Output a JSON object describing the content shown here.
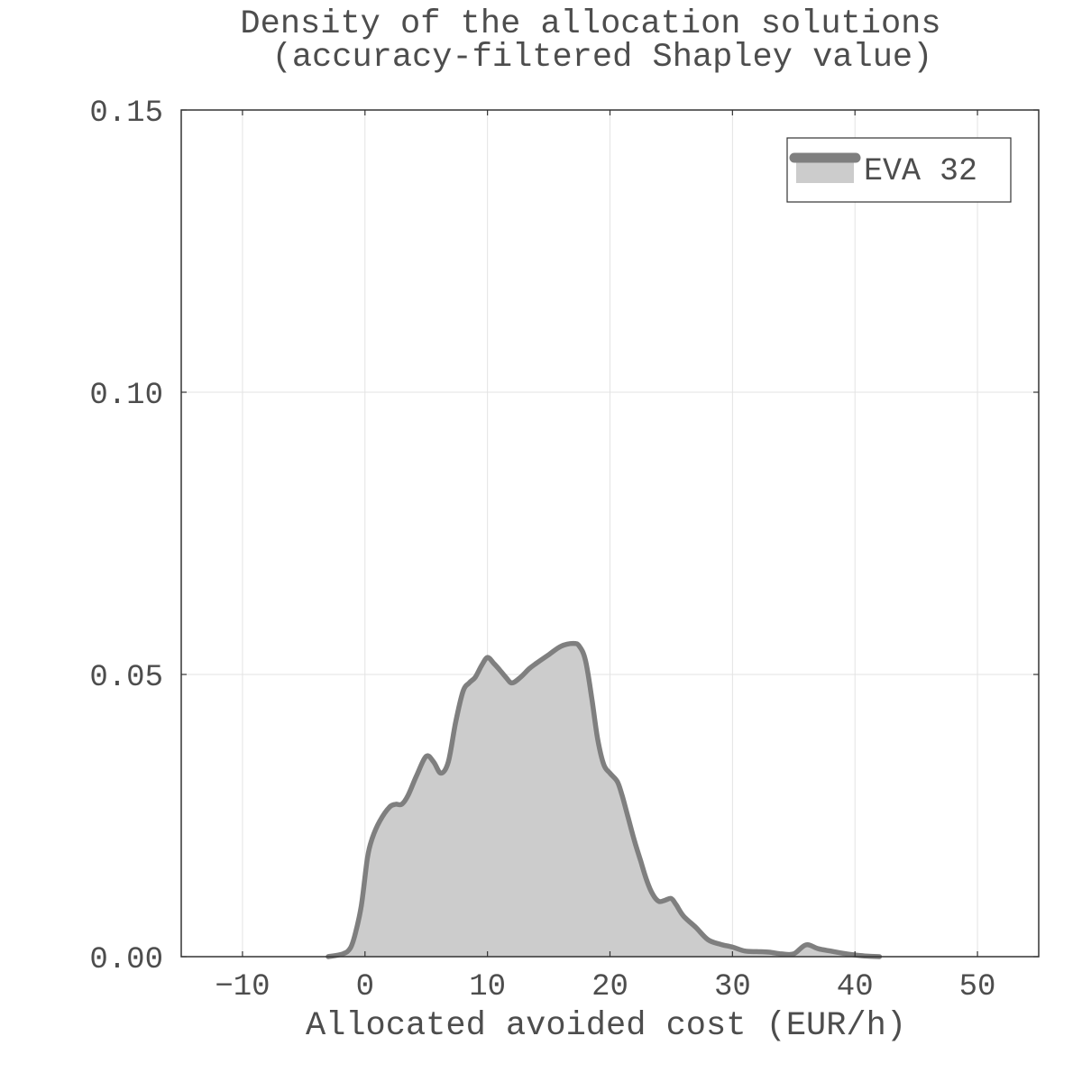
{
  "chart_data": {
    "type": "area",
    "title": "Density of the allocation solutions",
    "subtitle": "(accuracy-filtered Shapley value)",
    "xlabel": "Allocated avoided cost (EUR/h)",
    "ylabel": "",
    "xlim": [
      -15,
      55
    ],
    "ylim": [
      0,
      0.15
    ],
    "xticks": [
      -10,
      0,
      10,
      20,
      30,
      40,
      50
    ],
    "xtick_labels": [
      "−10",
      "0",
      "10",
      "20",
      "30",
      "40",
      "50"
    ],
    "yticks": [
      0,
      0.05,
      0.1,
      0.15
    ],
    "ytick_labels": [
      "0.00",
      "0.05",
      "0.10",
      "0.15"
    ],
    "grid": true,
    "legend_position": "top-right",
    "series": [
      {
        "name": "EVA 32",
        "line_color": "#7f7f7f",
        "fill_color": "#cccccc",
        "x": [
          -3,
          -1.8,
          -1.2,
          -0.8,
          -0.3,
          0.2,
          0.6,
          1.2,
          2,
          2.5,
          3,
          3.5,
          4.2,
          5,
          5.6,
          6.2,
          6.8,
          7.4,
          8,
          8.5,
          9,
          9.5,
          10,
          10.5,
          11,
          11.5,
          12,
          12.7,
          13.4,
          14,
          15,
          16,
          17,
          17.5,
          18,
          18.5,
          19,
          19.5,
          20,
          20.6,
          21,
          21.5,
          22,
          22.5,
          23,
          23.5,
          24,
          24.5,
          25,
          25.4,
          26,
          27,
          28,
          29,
          30,
          31,
          32,
          33,
          34,
          35,
          36,
          37,
          38,
          39,
          40,
          41,
          42
        ],
        "y": [
          0,
          0.0005,
          0.0015,
          0.004,
          0.009,
          0.0175,
          0.021,
          0.024,
          0.0265,
          0.027,
          0.027,
          0.0285,
          0.032,
          0.0355,
          0.0345,
          0.0325,
          0.0345,
          0.0415,
          0.047,
          0.0485,
          0.0495,
          0.0515,
          0.053,
          0.052,
          0.0508,
          0.0495,
          0.0485,
          0.0495,
          0.051,
          0.052,
          0.0535,
          0.055,
          0.0555,
          0.055,
          0.0525,
          0.046,
          0.0385,
          0.034,
          0.0325,
          0.031,
          0.0285,
          0.0245,
          0.0205,
          0.017,
          0.0135,
          0.011,
          0.0098,
          0.01,
          0.0103,
          0.0092,
          0.0072,
          0.0052,
          0.003,
          0.0022,
          0.0017,
          0.001,
          0.0009,
          0.0008,
          0.0005,
          0.0005,
          0.0021,
          0.0014,
          0.001,
          0.0006,
          0.0003,
          0.0001,
          0
        ]
      }
    ]
  }
}
